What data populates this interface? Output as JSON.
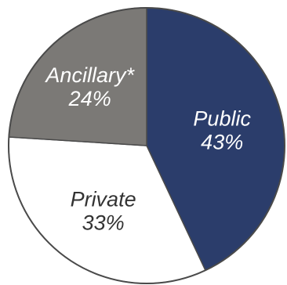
{
  "chart_data": {
    "type": "pie",
    "title": "",
    "slices": [
      {
        "label": "Public",
        "value": 43,
        "value_text": "43%",
        "color": "#2b3d6b",
        "text_color": "#ffffff"
      },
      {
        "label": "Private",
        "value": 33,
        "value_text": "33%",
        "color": "#ffffff",
        "text_color": "#333333"
      },
      {
        "label": "Ancillary*",
        "value": 24,
        "value_text": "24%",
        "color": "#7b7976",
        "text_color": "#ffffff"
      }
    ],
    "start_angle_deg": 0,
    "direction": "clockwise",
    "outline_color": "#4a4a4a"
  }
}
